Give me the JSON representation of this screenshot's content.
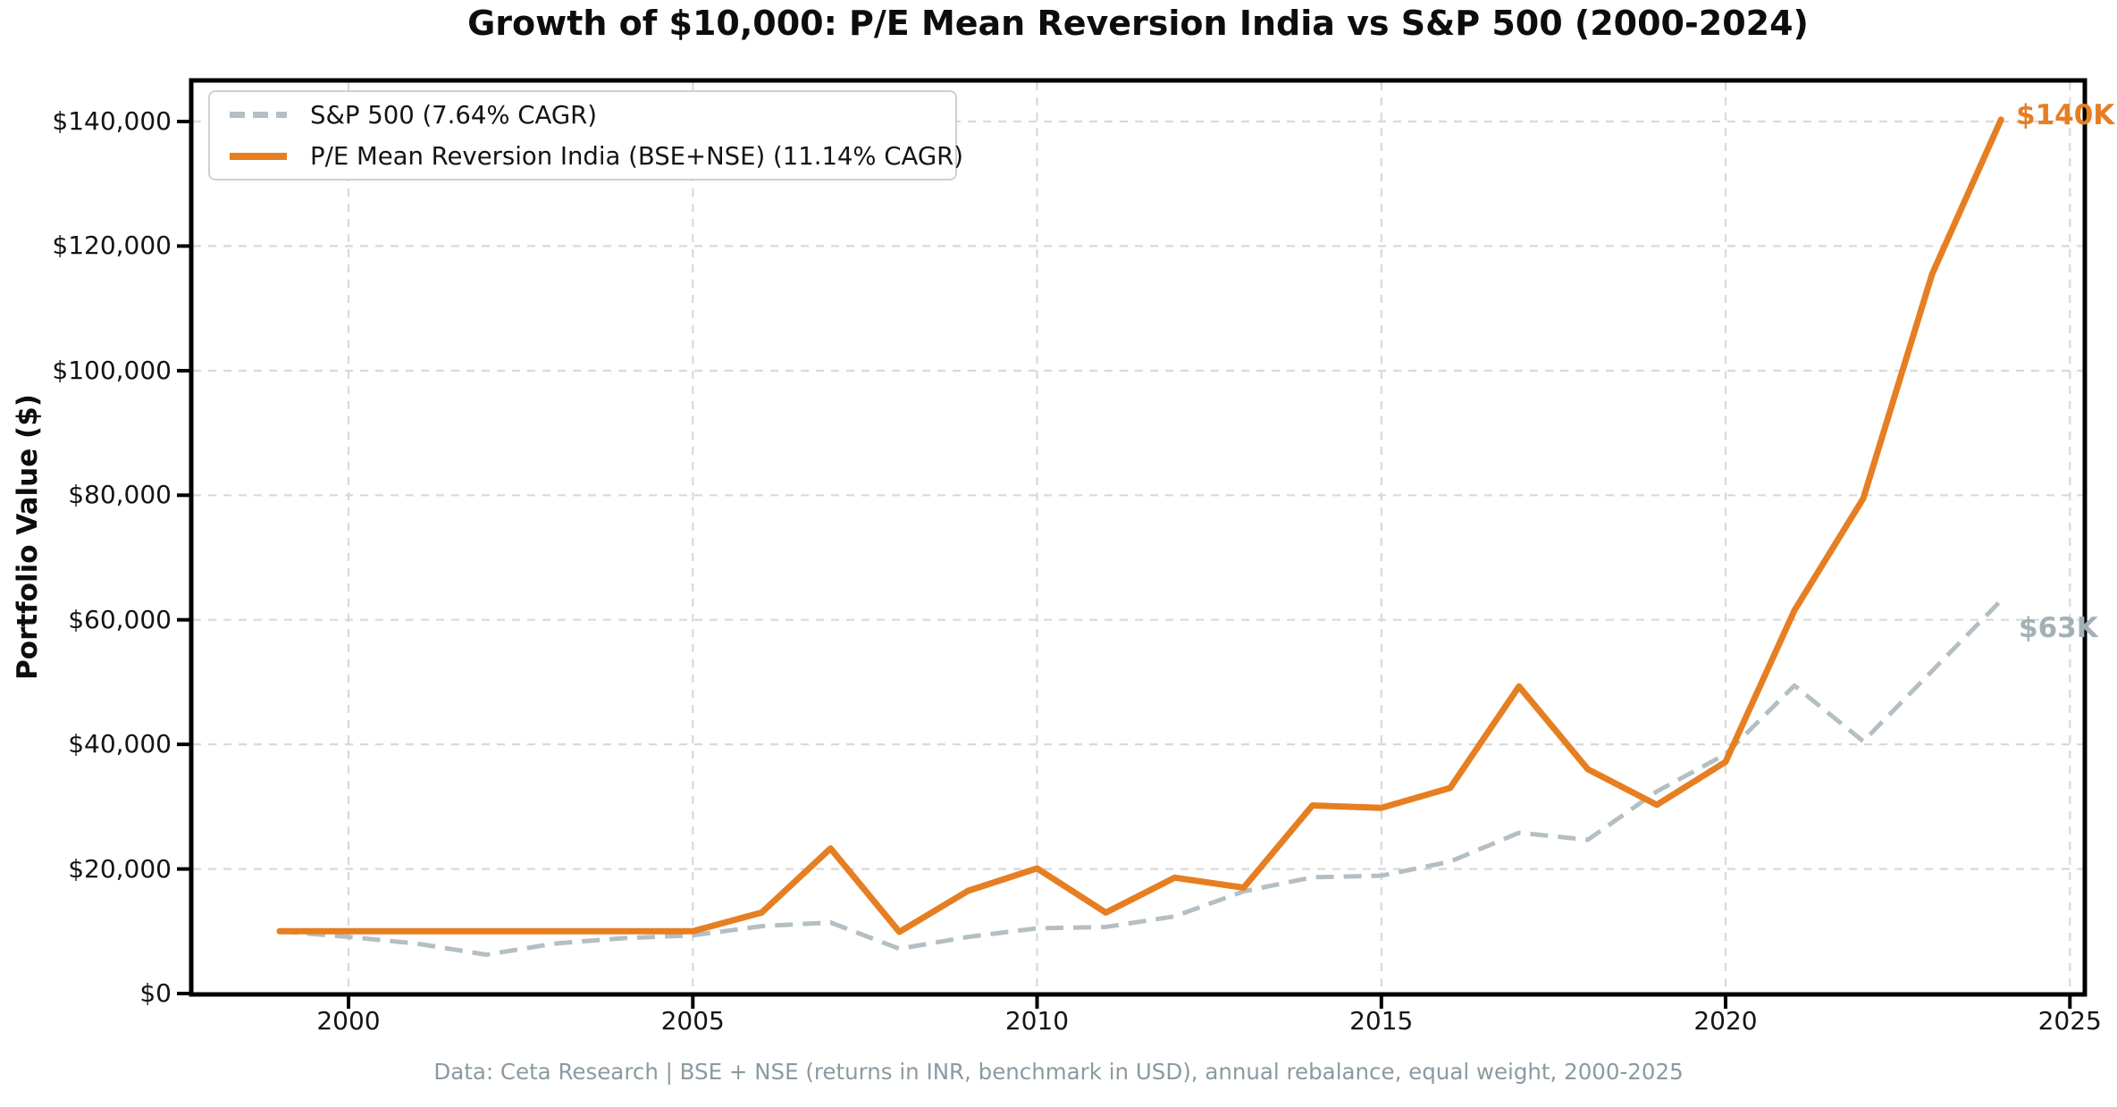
{
  "title": "Growth of $10,000: P/E Mean Reversion India vs S&P 500 (2000-2024)",
  "footer": "Data: Ceta Research | BSE + NSE (returns in INR, benchmark in USD), annual rebalance, equal weight, 2000-2025",
  "y_axis": {
    "label": "Portfolio Value ($)",
    "tick_values": [
      0,
      20000,
      40000,
      60000,
      80000,
      100000,
      120000,
      140000
    ],
    "tick_labels": [
      "$0",
      "$20,000",
      "$40,000",
      "$60,000",
      "$80,000",
      "$100,000",
      "$120,000",
      "$140,000"
    ]
  },
  "x_axis": {
    "tick_values": [
      2000,
      2005,
      2010,
      2015,
      2020,
      2025
    ],
    "tick_labels": [
      "2000",
      "2005",
      "2010",
      "2015",
      "2020",
      "2025"
    ]
  },
  "legend": {
    "sp500": {
      "label": "S&P 500 (7.64% CAGR)",
      "color": "#b4bfc3",
      "style": "dashed"
    },
    "india": {
      "label": "P/E Mean Reversion India (BSE+NSE) (11.14% CAGR)",
      "color": "#e67e22",
      "style": "solid"
    }
  },
  "annotations": {
    "india": {
      "text": "$140K",
      "color": "#e67e22"
    },
    "sp500": {
      "text": "$63K",
      "color": "#a3b1b6"
    }
  },
  "chart_data": {
    "type": "line",
    "title": "Growth of $10,000: P/E Mean Reversion India vs S&P 500 (2000-2024)",
    "xlabel": "",
    "ylabel": "Portfolio Value ($)",
    "xlim": [
      1997.7,
      2025.2
    ],
    "ylim": [
      0,
      146600
    ],
    "grid": true,
    "legend_position": "upper left",
    "x": [
      1999,
      2000,
      2001,
      2002,
      2003,
      2004,
      2005,
      2006,
      2007,
      2008,
      2009,
      2010,
      2011,
      2012,
      2013,
      2014,
      2015,
      2016,
      2017,
      2018,
      2019,
      2020,
      2021,
      2022,
      2023,
      2024
    ],
    "series": [
      {
        "id": "sp500",
        "name": "S&P 500 (7.64% CAGR)",
        "color": "#b4bfc3",
        "dash": true,
        "final_label": "$63K",
        "values": [
          10000,
          9100,
          8000,
          6240,
          8030,
          8900,
          9340,
          10820,
          11410,
          7190,
          9090,
          10470,
          10690,
          12400,
          16410,
          18660,
          18920,
          21190,
          25810,
          24680,
          32450,
          38420,
          49450,
          40500,
          51800,
          63100
        ]
      },
      {
        "id": "india",
        "name": "P/E Mean Reversion India (BSE+NSE) (11.14% CAGR)",
        "color": "#e67e22",
        "dash": false,
        "final_label": "$140K",
        "values": [
          10000,
          10000,
          10000,
          10000,
          10000,
          10000,
          10000,
          13000,
          23300,
          9900,
          16500,
          20100,
          13000,
          18600,
          17000,
          30200,
          29800,
          33000,
          49300,
          36000,
          30300,
          37200,
          61500,
          79500,
          115500,
          140300
        ]
      }
    ]
  }
}
